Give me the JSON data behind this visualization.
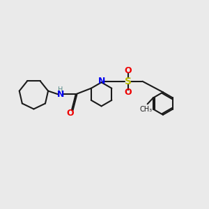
{
  "background_color": "#eaeaea",
  "bond_color": "#1a1a1a",
  "N_color": "#0000ee",
  "O_color": "#ee0000",
  "S_color": "#bbbb00",
  "H_color": "#558888",
  "line_width": 1.5,
  "figsize": [
    3.0,
    3.0
  ],
  "dpi": 100,
  "xlim": [
    0,
    10
  ],
  "ylim": [
    1,
    9
  ]
}
